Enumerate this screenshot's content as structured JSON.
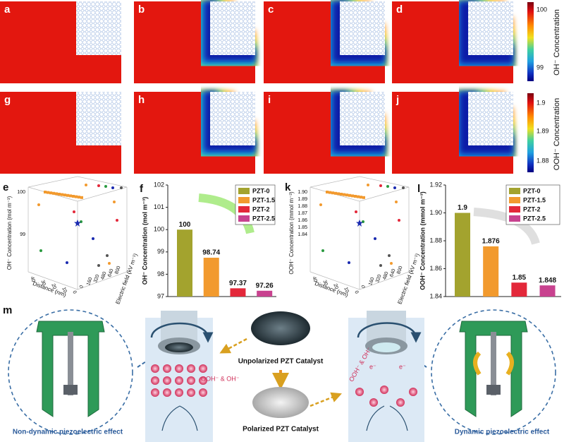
{
  "panels": {
    "labels": [
      "a",
      "b",
      "c",
      "d",
      "g",
      "h",
      "i",
      "j"
    ]
  },
  "colorbars": [
    {
      "label": "OH⁻ Concentration",
      "ticks": [
        "100",
        "99"
      ]
    },
    {
      "label": "OOH⁻ Concentration",
      "ticks": [
        "1.9",
        "1.89",
        "1.88"
      ]
    }
  ],
  "surfaces": [
    {
      "label": "e",
      "z_label": "OH⁻ Concentration (mol m⁻³)",
      "z_ticks": [
        "100",
        "99"
      ],
      "x_label": "Distance (nm)",
      "x_ticks": [
        "40",
        "30",
        "20",
        "10",
        "0"
      ],
      "y_label": "Electric field (kV m⁻¹)",
      "y_ticks": [
        "800",
        "640",
        "480",
        "320",
        "160",
        "0"
      ]
    },
    {
      "label": "k",
      "z_label": "OOH⁻ Concentration (mmol m⁻³)",
      "z_ticks": [
        "1.90",
        "1.89",
        "1.88",
        "1.87",
        "1.86",
        "1.85",
        "1.84"
      ],
      "x_label": "Distance (nm)",
      "x_ticks": [
        "40",
        "30",
        "20",
        "10",
        "0"
      ],
      "y_label": "Electric field (kV m⁻¹)",
      "y_ticks": [
        "800",
        "640",
        "480",
        "320",
        "160",
        "0"
      ]
    }
  ],
  "chart_data": [
    {
      "type": "bar",
      "panel_label": "f",
      "ylabel": "OH⁻ Concentration (mol m⁻³)",
      "categories": [
        null
      ],
      "ylim": [
        97,
        102
      ],
      "yticks": [
        97,
        98,
        99,
        100,
        101,
        102
      ],
      "legend": "upper right",
      "series": [
        {
          "name": "PZT-0",
          "color": "#a3a32e",
          "values": [
            100
          ]
        },
        {
          "name": "PZT-1.5",
          "color": "#f29a2e",
          "values": [
            98.74
          ]
        },
        {
          "name": "PZT-2",
          "color": "#e3283a",
          "values": [
            97.37
          ]
        },
        {
          "name": "PZT-2.5",
          "color": "#c8428f",
          "values": [
            97.26
          ]
        }
      ]
    },
    {
      "type": "bar",
      "panel_label": "l",
      "ylabel": "OOH⁻ Concentration (mmol m⁻³)",
      "categories": [
        null
      ],
      "ylim": [
        1.84,
        1.92
      ],
      "yticks": [
        1.84,
        1.86,
        1.88,
        {
          "value": 1.9,
          "label": "1.90"
        },
        1.92
      ],
      "legend": "upper right",
      "series": [
        {
          "name": "PZT-0",
          "color": "#a3a32e",
          "values": [
            1.9
          ]
        },
        {
          "name": "PZT-1.5",
          "color": "#f29a2e",
          "values": [
            1.876
          ]
        },
        {
          "name": "PZT-2",
          "color": "#e3283a",
          "values": [
            1.85
          ]
        },
        {
          "name": "PZT-2.5",
          "color": "#c8428f",
          "values": [
            1.848
          ]
        }
      ]
    }
  ],
  "illustration": {
    "label": "m",
    "unpolarized": "Unpolarized PZT Catalyst",
    "polarized": "Polarized PZT Catalyst",
    "ions_left": "OOH⁻ & OH⁻",
    "ions_right": "OOH⁻ & OH⁻",
    "electron": "e⁻",
    "left_caption": "Non-dynamic piezoelectric effect",
    "right_caption": "Dynamic piezoelectric effect"
  }
}
